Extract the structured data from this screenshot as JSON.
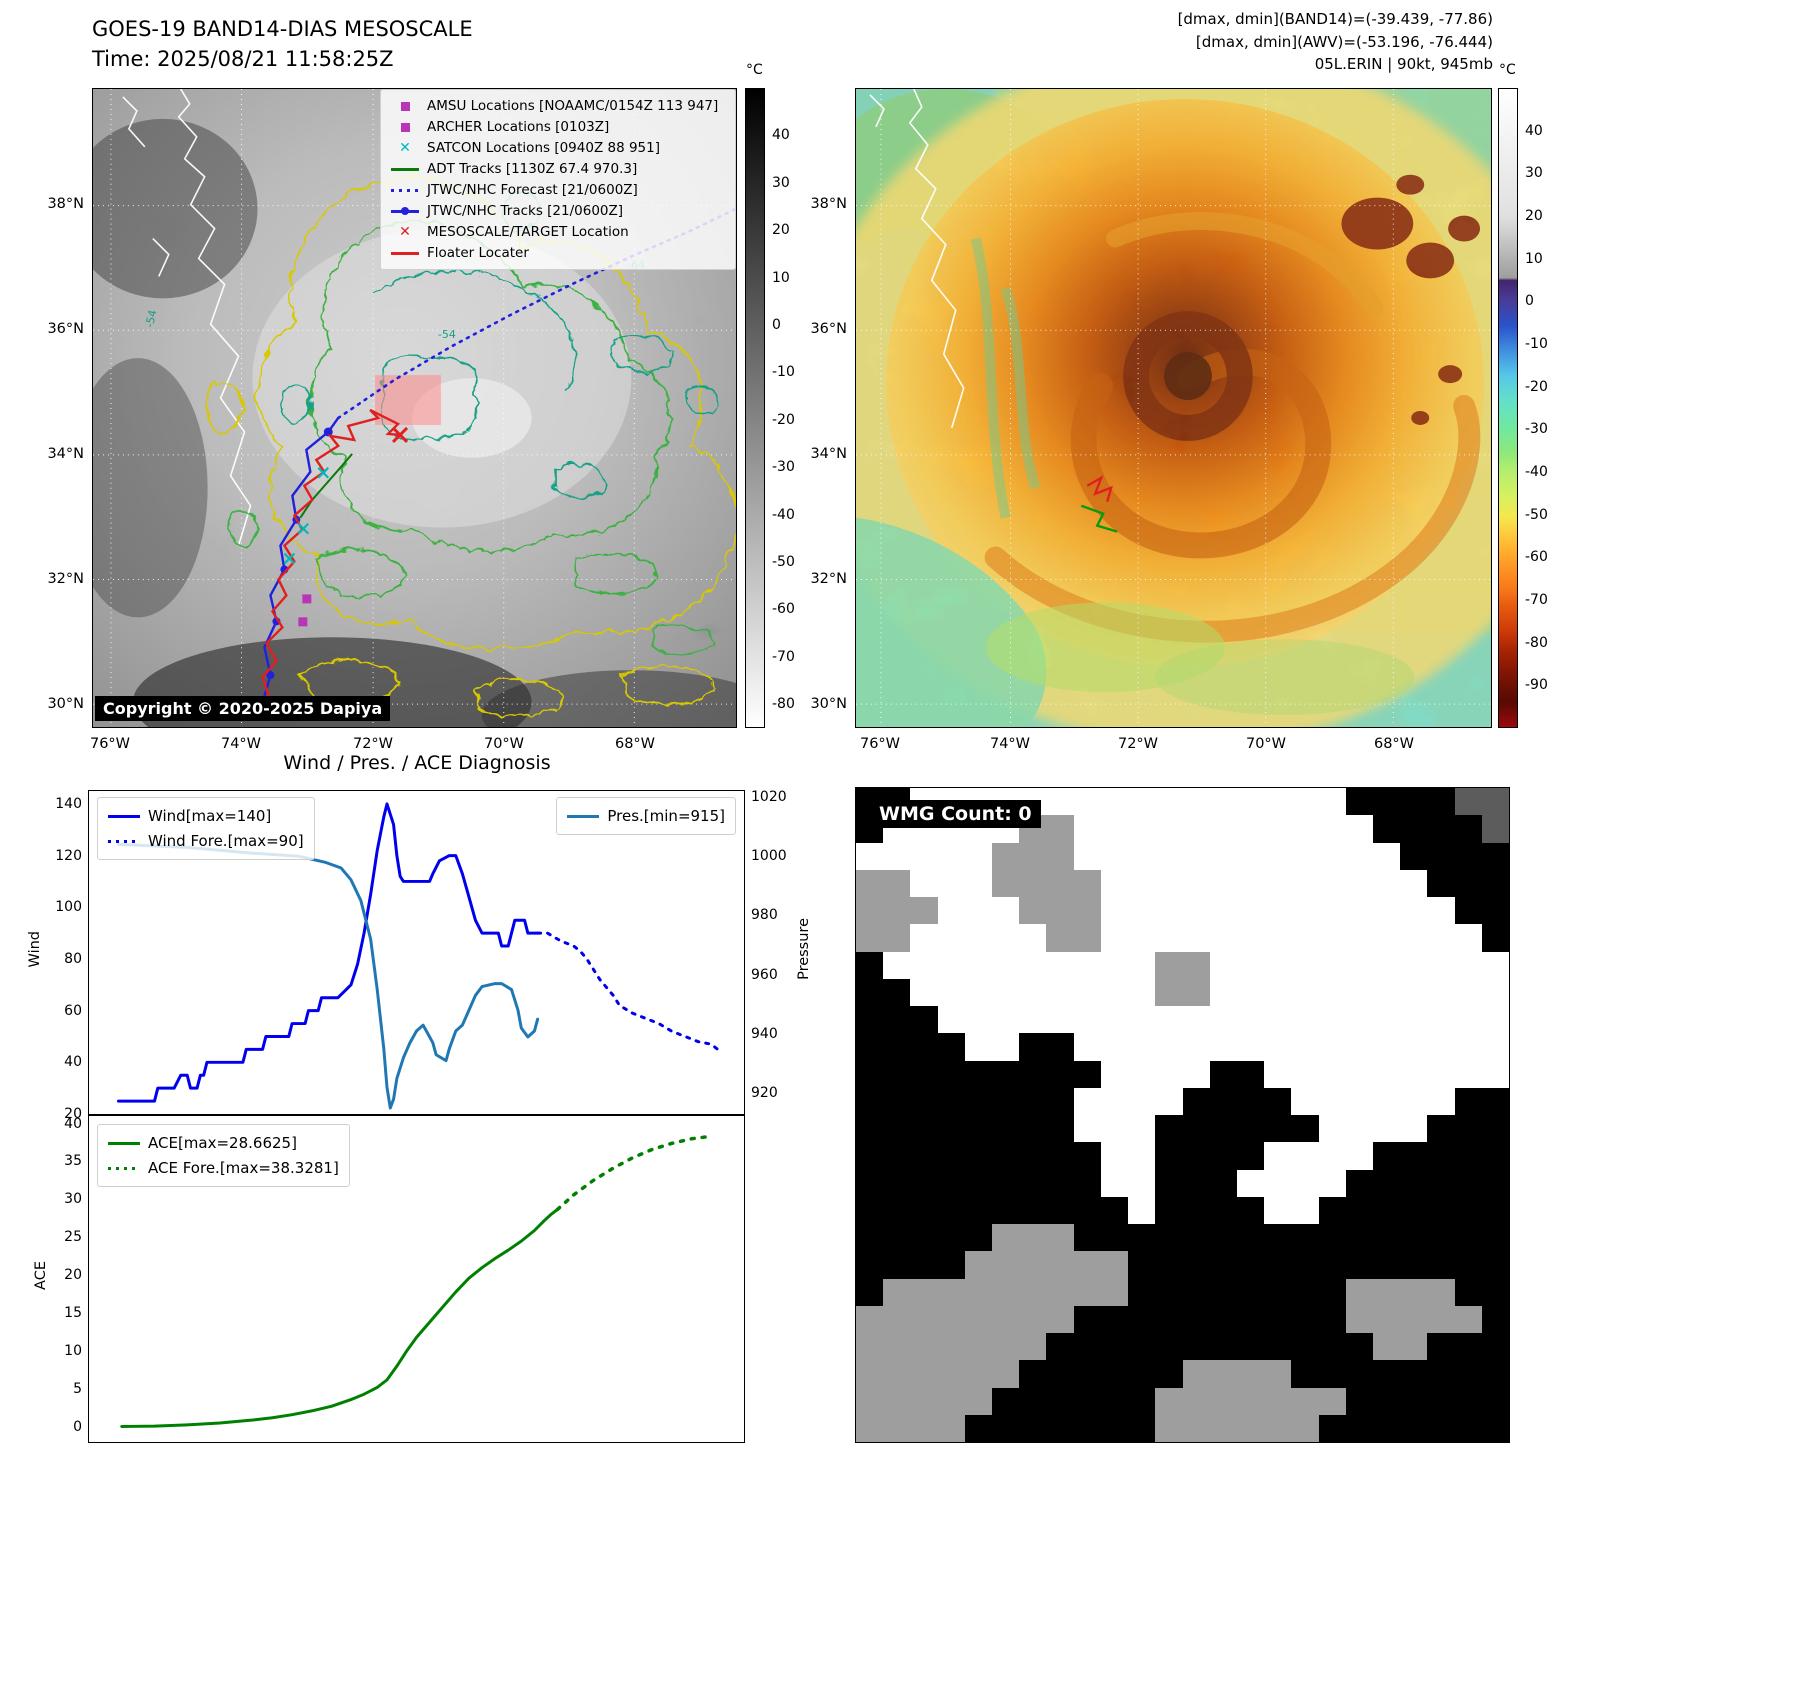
{
  "top_left": {
    "title": "GOES-19 BAND14-DIAS MESOSCALE",
    "subtitle": "Time: 2025/08/21 11:58:25Z",
    "copyright": "Copyright © 2020-2025 Dapiya",
    "legend": [
      {
        "marker": "square",
        "color": "#b835b8",
        "label": "AMSU Locations [NOAAMC/0154Z 113 947]"
      },
      {
        "marker": "square",
        "color": "#b835b8",
        "label": "ARCHER Locations [0103Z]"
      },
      {
        "marker": "x",
        "color": "#00b8b8",
        "label": "SATCON Locations [0940Z 88 951]"
      },
      {
        "marker": "line",
        "color": "#0a7a0a",
        "label": "ADT Tracks [1130Z 67.4 970.3]"
      },
      {
        "marker": "dotted",
        "color": "#2222dd",
        "label": "JTWC/NHC Forecast [21/0600Z]"
      },
      {
        "marker": "line-dot",
        "color": "#2222dd",
        "label": "JTWC/NHC Tracks [21/0600Z]"
      },
      {
        "marker": "x",
        "color": "#dd2222",
        "label": "MESOSCALE/TARGET Location"
      },
      {
        "marker": "line",
        "color": "#dd2222",
        "label": "Floater Locater"
      }
    ],
    "lat_ticks": [
      "38°N",
      "36°N",
      "34°N",
      "32°N",
      "30°N"
    ],
    "lon_ticks": [
      "76°W",
      "74°W",
      "72°W",
      "70°W",
      "68°W"
    ],
    "contour_labels": [
      "-54",
      "-54",
      "-64"
    ],
    "colorbar": {
      "unit": "°C",
      "range": [
        50,
        -85
      ],
      "ticks": [
        40,
        30,
        20,
        10,
        0,
        -10,
        -20,
        -30,
        -40,
        -50,
        -60,
        -70,
        -80
      ],
      "stops": [
        [
          "0%",
          "#000000"
        ],
        [
          "100%",
          "#ffffff"
        ]
      ]
    }
  },
  "top_right": {
    "header_lines": [
      "[dmax, dmin](BAND14)=(-39.439, -77.86)",
      "[dmax, dmin](AWV)=(-53.196, -76.444)",
      "05L.ERIN | 90kt, 945mb"
    ],
    "lat_ticks": [
      "38°N",
      "36°N",
      "34°N",
      "32°N",
      "30°N"
    ],
    "lon_ticks": [
      "76°W",
      "74°W",
      "72°W",
      "70°W",
      "68°W"
    ],
    "colorbar": {
      "unit": "°C",
      "range": [
        50,
        -100
      ],
      "ticks": [
        40,
        30,
        20,
        10,
        0,
        -10,
        -20,
        -30,
        -40,
        -50,
        -60,
        -70,
        -80,
        -90
      ],
      "stops": [
        [
          "0%",
          "#ffffff"
        ],
        [
          "20%",
          "#e0e0e0"
        ],
        [
          "29.6%",
          "#9e9e9e"
        ],
        [
          "30%",
          "#43246e"
        ],
        [
          "33%",
          "#4a3b96"
        ],
        [
          "37%",
          "#2a52c8"
        ],
        [
          "41%",
          "#3f8fe0"
        ],
        [
          "45%",
          "#57c8e8"
        ],
        [
          "49%",
          "#63e0c8"
        ],
        [
          "53%",
          "#6fe8a0"
        ],
        [
          "57%",
          "#8fe87a"
        ],
        [
          "60%",
          "#b4ee6e"
        ],
        [
          "64%",
          "#d8f060"
        ],
        [
          "67%",
          "#f4e84e"
        ],
        [
          "70%",
          "#ffc83c"
        ],
        [
          "74%",
          "#ff9e28"
        ],
        [
          "78%",
          "#f87c1a"
        ],
        [
          "81%",
          "#e85c10"
        ],
        [
          "85%",
          "#cc3a08"
        ],
        [
          "88%",
          "#a82404"
        ],
        [
          "92%",
          "#7c1404"
        ],
        [
          "96%",
          "#570a02"
        ],
        [
          "100%",
          "#9c0a0a"
        ]
      ]
    }
  },
  "chart_data": [
    {
      "type": "line",
      "title": "Wind / Pres. / ACE Diagnosis",
      "ylabel_left": "Wind",
      "ylabel_right": "Pressure",
      "xlim": [
        0,
        1
      ],
      "xticklabels": [],
      "ylim_left": [
        20,
        145
      ],
      "ylim_right": [
        913,
        1022
      ],
      "yticks_left": [
        140,
        120,
        100,
        80,
        60,
        40,
        20
      ],
      "yticks_right": [
        1020,
        1000,
        980,
        960,
        940,
        920
      ],
      "legend_left": [
        {
          "marker": "line",
          "color": "#0000ee",
          "label": "Wind[max=140]"
        },
        {
          "marker": "dotted",
          "color": "#0000ee",
          "label": "Wind Fore.[max=90]"
        }
      ],
      "legend_right": [
        {
          "marker": "line",
          "color": "#1f77b4",
          "label": "Pres.[min=915]"
        }
      ],
      "series": [
        {
          "name": "wind",
          "axis": "left",
          "color": "#0000ee",
          "width": 3,
          "points": [
            [
              0.045,
              25
            ],
            [
              0.1,
              25
            ],
            [
              0.105,
              30
            ],
            [
              0.13,
              30
            ],
            [
              0.14,
              35
            ],
            [
              0.15,
              35
            ],
            [
              0.155,
              30
            ],
            [
              0.165,
              30
            ],
            [
              0.17,
              35
            ],
            [
              0.175,
              35
            ],
            [
              0.18,
              40
            ],
            [
              0.235,
              40
            ],
            [
              0.24,
              45
            ],
            [
              0.265,
              45
            ],
            [
              0.27,
              50
            ],
            [
              0.305,
              50
            ],
            [
              0.31,
              55
            ],
            [
              0.33,
              55
            ],
            [
              0.335,
              60
            ],
            [
              0.35,
              60
            ],
            [
              0.355,
              65
            ],
            [
              0.38,
              65
            ],
            [
              0.4,
              70
            ],
            [
              0.41,
              78
            ],
            [
              0.42,
              90
            ],
            [
              0.43,
              105
            ],
            [
              0.44,
              122
            ],
            [
              0.45,
              135
            ],
            [
              0.455,
              140
            ],
            [
              0.465,
              132
            ],
            [
              0.47,
              120
            ],
            [
              0.475,
              112
            ],
            [
              0.48,
              110
            ],
            [
              0.52,
              110
            ],
            [
              0.525,
              113
            ],
            [
              0.535,
              118
            ],
            [
              0.55,
              120
            ],
            [
              0.56,
              120
            ],
            [
              0.57,
              113
            ],
            [
              0.58,
              104
            ],
            [
              0.59,
              95
            ],
            [
              0.6,
              90
            ],
            [
              0.625,
              90
            ],
            [
              0.63,
              85
            ],
            [
              0.64,
              85
            ],
            [
              0.645,
              90
            ],
            [
              0.65,
              95
            ],
            [
              0.665,
              95
            ],
            [
              0.67,
              90
            ],
            [
              0.685,
              90
            ]
          ]
        },
        {
          "name": "wind-forecast",
          "axis": "left",
          "color": "#0000ee",
          "width": 3,
          "dash": "3 7",
          "points": [
            [
              0.685,
              90
            ],
            [
              0.7,
              90
            ],
            [
              0.72,
              87
            ],
            [
              0.74,
              85
            ],
            [
              0.75,
              83
            ],
            [
              0.76,
              80
            ],
            [
              0.77,
              76
            ],
            [
              0.78,
              72
            ],
            [
              0.8,
              66
            ],
            [
              0.81,
              62
            ],
            [
              0.83,
              59
            ],
            [
              0.85,
              57
            ],
            [
              0.87,
              55
            ],
            [
              0.89,
              52
            ],
            [
              0.91,
              50
            ],
            [
              0.93,
              48
            ],
            [
              0.95,
              47
            ],
            [
              0.96,
              45
            ]
          ]
        },
        {
          "name": "pressure",
          "axis": "right",
          "color": "#1f77b4",
          "width": 3,
          "points": [
            [
              0.045,
              1004
            ],
            [
              0.15,
              1003
            ],
            [
              0.25,
              1001
            ],
            [
              0.32,
              1000
            ],
            [
              0.36,
              998
            ],
            [
              0.385,
              996
            ],
            [
              0.4,
              992
            ],
            [
              0.415,
              985
            ],
            [
              0.43,
              972
            ],
            [
              0.44,
              955
            ],
            [
              0.45,
              935
            ],
            [
              0.455,
              922
            ],
            [
              0.46,
              915
            ],
            [
              0.465,
              918
            ],
            [
              0.47,
              925
            ],
            [
              0.48,
              932
            ],
            [
              0.49,
              937
            ],
            [
              0.5,
              941
            ],
            [
              0.51,
              943
            ],
            [
              0.515,
              941
            ],
            [
              0.525,
              937
            ],
            [
              0.53,
              933
            ],
            [
              0.545,
              931
            ],
            [
              0.55,
              935
            ],
            [
              0.56,
              941
            ],
            [
              0.57,
              943
            ],
            [
              0.58,
              948
            ],
            [
              0.59,
              953
            ],
            [
              0.6,
              956
            ],
            [
              0.62,
              957
            ],
            [
              0.63,
              957
            ],
            [
              0.645,
              955
            ],
            [
              0.655,
              948
            ],
            [
              0.66,
              942
            ],
            [
              0.67,
              939
            ],
            [
              0.68,
              941
            ],
            [
              0.685,
              945
            ]
          ]
        }
      ]
    },
    {
      "type": "line",
      "title": "",
      "ylabel_left": "ACE",
      "xlim": [
        0,
        1
      ],
      "xticklabels": [],
      "ylim_left": [
        -2,
        41
      ],
      "yticks_left": [
        40,
        35,
        30,
        25,
        20,
        15,
        10,
        5,
        0
      ],
      "legend_left": [
        {
          "marker": "line",
          "color": "#008000",
          "label": "ACE[max=28.6625]"
        },
        {
          "marker": "dotted",
          "color": "#008000",
          "label": "ACE Fore.[max=38.3281]"
        }
      ],
      "series": [
        {
          "name": "ace",
          "axis": "left",
          "color": "#008000",
          "width": 3,
          "points": [
            [
              0.05,
              0.05
            ],
            [
              0.1,
              0.1
            ],
            [
              0.15,
              0.25
            ],
            [
              0.2,
              0.5
            ],
            [
              0.25,
              0.9
            ],
            [
              0.28,
              1.2
            ],
            [
              0.31,
              1.6
            ],
            [
              0.34,
              2.1
            ],
            [
              0.37,
              2.7
            ],
            [
              0.4,
              3.6
            ],
            [
              0.42,
              4.3
            ],
            [
              0.44,
              5.2
            ],
            [
              0.455,
              6.2
            ],
            [
              0.47,
              8.0
            ],
            [
              0.485,
              10.0
            ],
            [
              0.5,
              11.8
            ],
            [
              0.52,
              13.8
            ],
            [
              0.54,
              15.8
            ],
            [
              0.56,
              17.8
            ],
            [
              0.58,
              19.6
            ],
            [
              0.6,
              21.0
            ],
            [
              0.62,
              22.2
            ],
            [
              0.64,
              23.3
            ],
            [
              0.66,
              24.5
            ],
            [
              0.68,
              25.9
            ],
            [
              0.695,
              27.2
            ],
            [
              0.705,
              28.0
            ],
            [
              0.715,
              28.66
            ]
          ]
        },
        {
          "name": "ace-forecast",
          "axis": "left",
          "color": "#008000",
          "width": 3.5,
          "dash": "3 8",
          "points": [
            [
              0.715,
              28.66
            ],
            [
              0.74,
              30.6
            ],
            [
              0.77,
              32.5
            ],
            [
              0.8,
              34.1
            ],
            [
              0.83,
              35.5
            ],
            [
              0.86,
              36.6
            ],
            [
              0.89,
              37.4
            ],
            [
              0.92,
              38.0
            ],
            [
              0.95,
              38.33
            ]
          ]
        }
      ]
    }
  ],
  "wmg": {
    "label": "WMG Count: 0",
    "tones": {
      "w": "#ffffff",
      "b": "#000000",
      "g": "#9e9e9e",
      "d": "#5c5c5c"
    },
    "rows": [
      "bbwwwwwwwwwwwwwwwwbbbbdd",
      "bwwwwwggwwwwwwwwwwwbbbbd",
      "wwwwwgggwwwwwwwwwwwwbbbb",
      "ggwwwggggwwwwwwwwwwwwbbb",
      "gggwwwgggwwwwwwwwwwwwwbb",
      "ggwwwwwggwwwwwwwwwwwwwwb",
      "bwwwwwwwwwwggwwwwwwwwwww",
      "bbwwwwwwwwwggwwwwwwwwwww",
      "bbbwwwwwwwwwwwwwwwwwwwww",
      "bbbbwwbbwwwwwwwwwwwwwwww",
      "bbbbbbbbbwwwwbbwwwwwwwww",
      "bbbbbbbbwwwwbbbbwwwwwwbb",
      "bbbbbbbbwwwbbbbbbwwwwbbb",
      "bbbbbbbbbwwbbbbwwwwbbbbb",
      "bbbbbbbbbwwbbbwwwwbbbbbb",
      "bbbbbbbbbbwbbbbwwbbbbbbb",
      "bbbbbgggbbbbbbbbbbbbbbbb",
      "bbbbggggggbbbbbbbbbbbbbb",
      "bgggggggggbbbbbbbbggggbb",
      "ggggggggbbbbbbbbbbgggggb",
      "gggggggbbbbbbbbbbbbggbbb",
      "ggggggbbbbbbggggbbbbbbbb",
      "gggggbbbbbbgggggggbbbbbb",
      "ggggbbbbbbbggggggbbbbbbb"
    ]
  }
}
